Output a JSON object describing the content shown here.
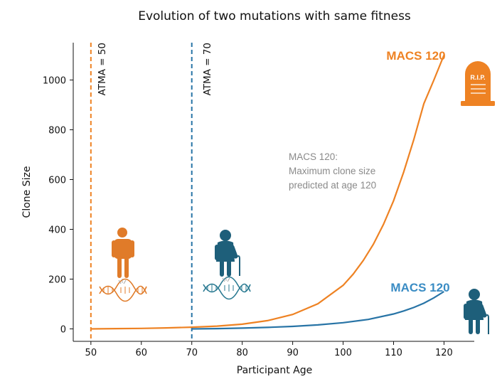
{
  "chart_data": {
    "type": "line",
    "title": "Evolution of two mutations with same fitness",
    "xlabel": "Participant Age",
    "ylabel": "Clone Size",
    "xlim": [
      46.5,
      126
    ],
    "ylim": [
      -50,
      1150
    ],
    "x_ticks": [
      50,
      60,
      70,
      80,
      90,
      100,
      110,
      120
    ],
    "y_ticks": [
      0,
      200,
      400,
      600,
      800,
      1000
    ],
    "grid": false,
    "colors": {
      "orange": "#ee8223",
      "blue": "#2874a6"
    },
    "series": [
      {
        "name": "ATMA = 50",
        "color": "#ee8223",
        "atma": 50,
        "x": [
          50,
          55,
          60,
          65,
          70,
          75,
          80,
          85,
          90,
          95,
          100,
          102,
          104,
          106,
          108,
          110,
          112,
          114,
          116,
          118,
          120
        ],
        "y": [
          0,
          1,
          2,
          4,
          7,
          11,
          19,
          33,
          58,
          101,
          175,
          220,
          275,
          340,
          420,
          515,
          630,
          760,
          905,
          1000,
          1100
        ]
      },
      {
        "name": "ATMA = 70",
        "color": "#2874a6",
        "atma": 70,
        "x": [
          70,
          75,
          80,
          85,
          90,
          95,
          100,
          105,
          110,
          112,
          114,
          116,
          118,
          120
        ],
        "y": [
          0,
          1,
          3,
          6,
          10,
          16,
          25,
          38,
          60,
          72,
          86,
          103,
          125,
          150
        ]
      }
    ],
    "vlines": [
      {
        "x": 50,
        "label": "ATMA = 50",
        "color": "#ee8223"
      },
      {
        "x": 70,
        "label": "ATMA = 70",
        "color": "#2874a6"
      }
    ],
    "annotations": {
      "macs_orange": "MACS 120",
      "macs_blue": "MACS 120",
      "note_lines": [
        "MACS 120:",
        "Maximum clone size",
        "predicted at age 120"
      ],
      "rip": "R.I.P."
    }
  }
}
